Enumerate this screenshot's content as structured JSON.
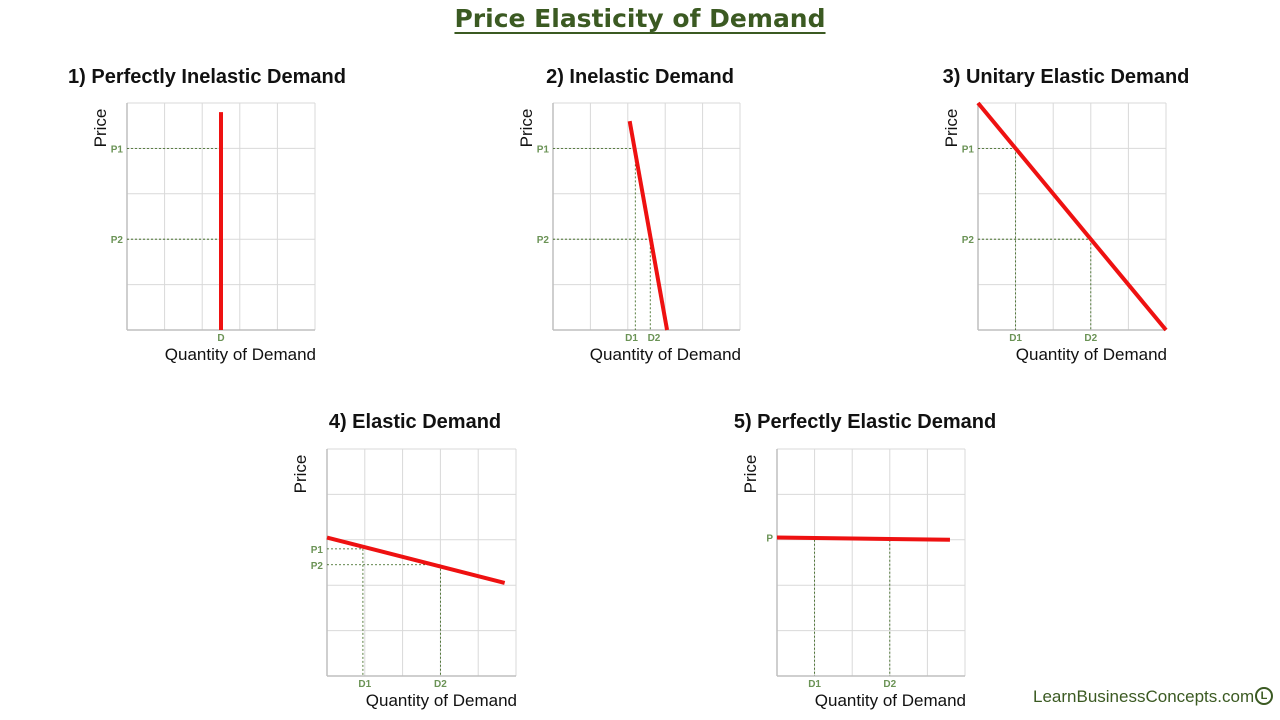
{
  "page": {
    "title": "Price Elasticity of Demand",
    "brand": "LearnBusinessConcepts.com",
    "brand_logo_letter": "L"
  },
  "colors": {
    "title": "#3b5a22",
    "curve": "#ee1111",
    "grid": "#d9d9d9",
    "axis": "#bfbfbf",
    "guide": "#2e5e10",
    "tick_label": "#6b9356",
    "axis_label": "#111111"
  },
  "chart_data": [
    {
      "id": "perfectly-inelastic",
      "type": "line",
      "title": "1) Perfectly Inelastic Demand",
      "xlabel": "Quantity of Demand",
      "ylabel": "Price",
      "xlim": [
        0,
        5
      ],
      "ylim": [
        0,
        5
      ],
      "grid": true,
      "series": [
        {
          "name": "Demand",
          "points": [
            [
              2.5,
              4.8
            ],
            [
              2.5,
              0
            ]
          ]
        }
      ],
      "guides": [
        {
          "y": 4,
          "x": 2.5,
          "vertical": false
        },
        {
          "y": 2,
          "x": 2.5,
          "vertical": false
        }
      ],
      "y_ticks": [
        {
          "label": "P1",
          "value": 4
        },
        {
          "label": "P2",
          "value": 2
        }
      ],
      "x_ticks": [
        {
          "label": "D",
          "value": 2.5
        }
      ]
    },
    {
      "id": "inelastic",
      "type": "line",
      "title": "2) Inelastic Demand",
      "xlabel": "Quantity of Demand",
      "ylabel": "Price",
      "xlim": [
        0,
        5
      ],
      "ylim": [
        0,
        5
      ],
      "grid": true,
      "series": [
        {
          "name": "Demand",
          "points": [
            [
              2.05,
              4.6
            ],
            [
              3.05,
              0
            ]
          ]
        }
      ],
      "guides": [
        {
          "y": 4,
          "x": 2.2,
          "vertical": true
        },
        {
          "y": 2,
          "x": 2.6,
          "vertical": true
        }
      ],
      "y_ticks": [
        {
          "label": "P1",
          "value": 4
        },
        {
          "label": "P2",
          "value": 2
        }
      ],
      "x_ticks": [
        {
          "label": "D1",
          "value": 2.1
        },
        {
          "label": "D2",
          "value": 2.7
        }
      ]
    },
    {
      "id": "unitary-elastic",
      "type": "line",
      "title": "3) Unitary Elastic Demand",
      "xlabel": "Quantity of Demand",
      "ylabel": "Price",
      "xlim": [
        0,
        5
      ],
      "ylim": [
        0,
        5
      ],
      "grid": true,
      "series": [
        {
          "name": "Demand",
          "points": [
            [
              0,
              5
            ],
            [
              5,
              0
            ]
          ]
        }
      ],
      "guides": [
        {
          "y": 4,
          "x": 1,
          "vertical": true
        },
        {
          "y": 2,
          "x": 3,
          "vertical": true
        }
      ],
      "y_ticks": [
        {
          "label": "P1",
          "value": 4
        },
        {
          "label": "P2",
          "value": 2
        }
      ],
      "x_ticks": [
        {
          "label": "D1",
          "value": 1
        },
        {
          "label": "D2",
          "value": 3
        }
      ]
    },
    {
      "id": "elastic",
      "type": "line",
      "title": "4) Elastic Demand",
      "xlabel": "Quantity of Demand",
      "ylabel": "Price",
      "xlim": [
        0,
        5
      ],
      "ylim": [
        0,
        5
      ],
      "grid": true,
      "series": [
        {
          "name": "Demand",
          "points": [
            [
              0,
              3.05
            ],
            [
              4.7,
              2.05
            ]
          ]
        }
      ],
      "guides": [
        {
          "y": 2.8,
          "x": 0.95,
          "vertical": true
        },
        {
          "y": 2.45,
          "x": 3,
          "vertical": true
        }
      ],
      "y_ticks": [
        {
          "label": "P1",
          "value": 2.8
        },
        {
          "label": "P2",
          "value": 2.45
        }
      ],
      "x_ticks": [
        {
          "label": "D1",
          "value": 1
        },
        {
          "label": "D2",
          "value": 3
        }
      ]
    },
    {
      "id": "perfectly-elastic",
      "type": "line",
      "title": "5) Perfectly Elastic Demand",
      "xlabel": "Quantity of Demand",
      "ylabel": "Price",
      "xlim": [
        0,
        5
      ],
      "ylim": [
        0,
        5
      ],
      "grid": true,
      "series": [
        {
          "name": "Demand",
          "points": [
            [
              0,
              3.05
            ],
            [
              4.6,
              3
            ]
          ]
        }
      ],
      "guides": [
        {
          "y": 3,
          "x": 1,
          "vertical": true,
          "horizontal": false
        },
        {
          "y": 3,
          "x": 3,
          "vertical": true,
          "horizontal": false
        }
      ],
      "y_ticks": [
        {
          "label": "P",
          "value": 3.05
        }
      ],
      "x_ticks": [
        {
          "label": "D1",
          "value": 1
        },
        {
          "label": "D2",
          "value": 3
        }
      ]
    }
  ]
}
